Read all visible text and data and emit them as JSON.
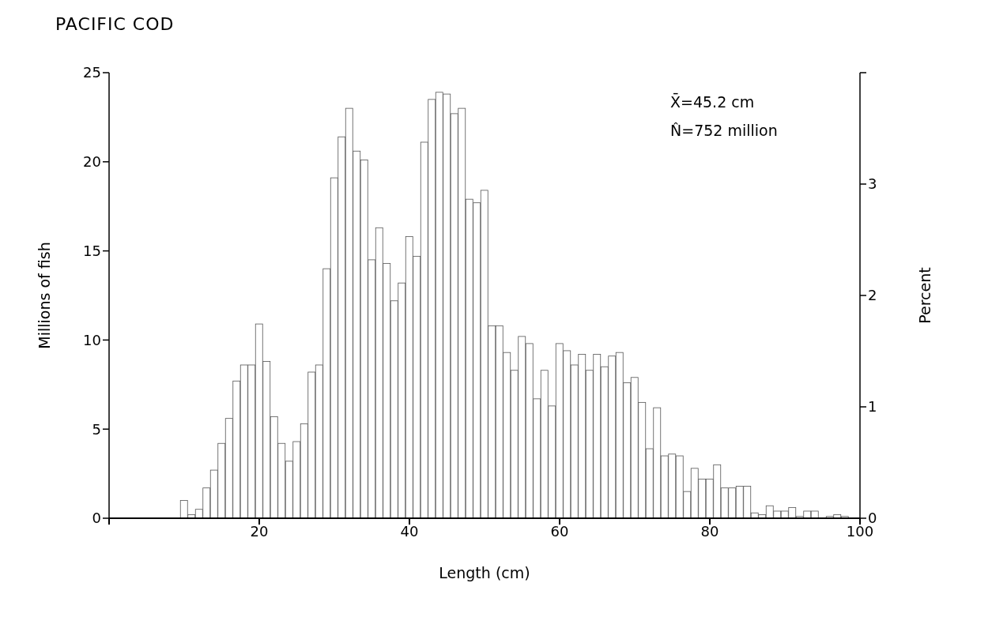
{
  "chart_data": {
    "type": "histogram",
    "title": "PACIFIC COD",
    "xlabel": "Length (cm)",
    "ylabel": "Millions of fish",
    "y2label": "Percent",
    "annotations": [
      "X̄=45.2 cm",
      "N̂=752 million"
    ],
    "bins": [
      9.5,
      10.5,
      11.5,
      12.5,
      13.5,
      14.5,
      15.5,
      16.5,
      17.5,
      18.5,
      19.5,
      20.5,
      21.5,
      22.5,
      23.5,
      24.5,
      25.5,
      26.5,
      27.5,
      28.5,
      29.5,
      30.5,
      31.5,
      32.5,
      33.5,
      34.5,
      35.5,
      36.5,
      37.5,
      38.5,
      39.5,
      40.5,
      41.5,
      42.5,
      43.5,
      44.5,
      45.5,
      46.5,
      47.5,
      48.5,
      49.5,
      50.5,
      51.5,
      52.5,
      53.5,
      54.5,
      55.5,
      56.5,
      57.5,
      58.5,
      59.5,
      60.5,
      61.5,
      62.5,
      63.5,
      64.5,
      65.5,
      66.5,
      67.5,
      68.5,
      69.5,
      70.5,
      71.5,
      72.5,
      73.5,
      74.5,
      75.5,
      76.5,
      77.5,
      78.5,
      79.5,
      80.5,
      81.5,
      82.5,
      83.5,
      84.5,
      85.5,
      86.5,
      87.5,
      88.5,
      89.5,
      90.5,
      91.5,
      92.5,
      93.5,
      94.5,
      95.5,
      96.5,
      97.5,
      98.5
    ],
    "values": [
      1.0,
      0.2,
      0.5,
      1.7,
      2.7,
      4.2,
      5.6,
      7.7,
      8.6,
      8.6,
      10.9,
      8.8,
      5.7,
      4.2,
      3.2,
      4.3,
      5.3,
      8.2,
      8.6,
      14.0,
      19.1,
      21.4,
      23.0,
      20.6,
      20.1,
      14.5,
      16.3,
      14.3,
      12.2,
      13.2,
      15.8,
      14.7,
      21.1,
      23.5,
      23.9,
      23.8,
      22.7,
      23.0,
      17.9,
      17.7,
      18.4,
      10.8,
      10.8,
      9.3,
      8.3,
      10.2,
      9.8,
      6.7,
      8.3,
      6.3,
      9.8,
      9.4,
      8.6,
      9.2,
      8.3,
      9.2,
      8.5,
      9.1,
      9.3,
      7.6,
      7.9,
      6.5,
      3.9,
      6.2,
      3.5,
      3.6,
      3.5,
      1.5,
      2.8,
      2.2,
      2.2,
      3.0,
      1.7,
      1.7,
      1.8,
      1.8,
      0.3,
      0.2,
      0.7,
      0.4,
      0.4,
      0.6,
      0.1,
      0.4,
      0.4,
      0,
      0.1,
      0.2,
      0.1
    ],
    "color": "#ffffff",
    "xlim": [
      0,
      100
    ],
    "xticks": [
      {
        "value": 0,
        "label": null
      },
      20,
      40,
      60,
      80,
      100
    ],
    "ylim": [
      0,
      25
    ],
    "yticks": [
      0,
      5,
      10,
      15,
      20,
      25
    ],
    "y2lim": [
      0,
      4
    ],
    "y2ticks": [
      0,
      1,
      2,
      3,
      {
        "value": 4,
        "label": null
      }
    ],
    "grid": false,
    "legend": false
  }
}
